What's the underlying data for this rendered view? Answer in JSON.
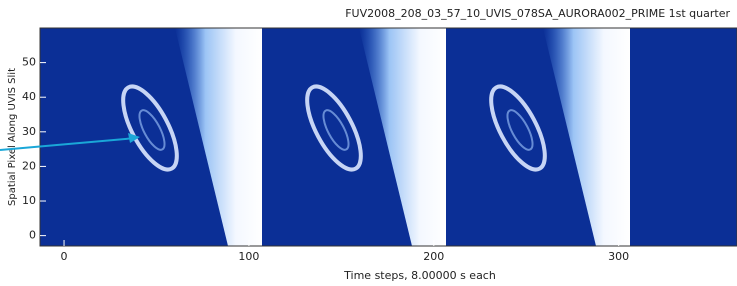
{
  "chart_data": {
    "type": "image",
    "title": "FUV2008_208_03_57_10_UVIS_078SA_AURORA002_PRIME  1st quarter",
    "x_label": "Time steps, 8.00000 s each",
    "y_label": "Spatial Pixel Along UVIS Slit",
    "xlim": [
      -13,
      364
    ],
    "ylim": [
      -3,
      60
    ],
    "xticks": [
      0,
      100,
      200,
      300
    ],
    "yticks": [
      0,
      10,
      20,
      30,
      40,
      50
    ]
  }
}
